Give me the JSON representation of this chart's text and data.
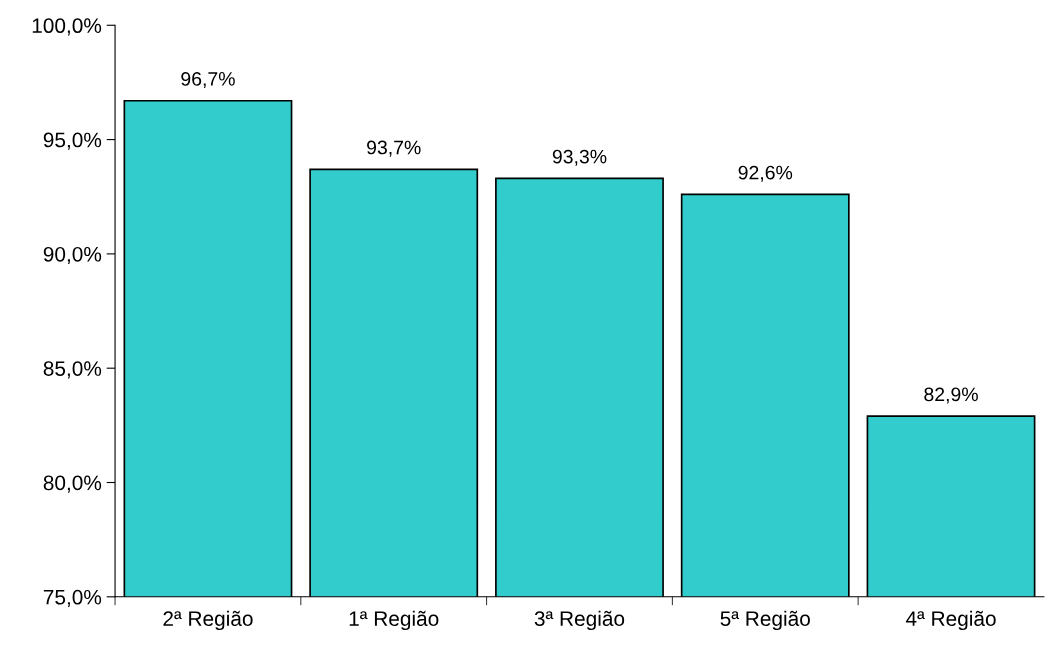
{
  "chart_data": {
    "type": "bar",
    "categories": [
      "2ª Região",
      "1ª Região",
      "3ª Região",
      "5ª Região",
      "4ª Região"
    ],
    "values": [
      96.7,
      93.7,
      93.3,
      92.6,
      82.9
    ],
    "value_labels": [
      "96,7%",
      "93,7%",
      "93,3%",
      "92,6%",
      "82,9%"
    ],
    "color": "#33cccc",
    "ylim": [
      75,
      100
    ],
    "yticks": [
      {
        "value": 75,
        "label": "75,0%"
      },
      {
        "value": 80,
        "label": "80,0%"
      },
      {
        "value": 85,
        "label": "85,0%"
      },
      {
        "value": 90,
        "label": "90,0%"
      },
      {
        "value": 95,
        "label": "95,0%"
      },
      {
        "value": 100,
        "label": "100,0%"
      }
    ],
    "grid": false,
    "legend": false
  }
}
